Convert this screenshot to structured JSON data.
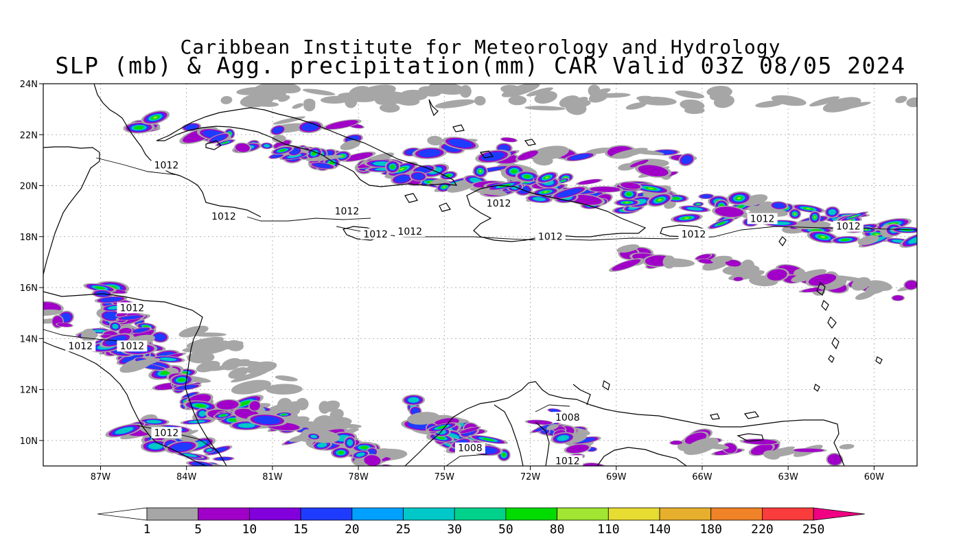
{
  "title": {
    "line1": "Caribbean Institute for Meteorology and Hydrology",
    "line2": "SLP (mb) & Agg. precipitation(mm) CAR Valid 03Z 08/05 2024"
  },
  "map": {
    "lon_min": -89.0,
    "lon_max": -58.5,
    "lat_min": 9.0,
    "lat_max": 24.0,
    "x_ticks": [
      {
        "lon": -87,
        "label": "87W"
      },
      {
        "lon": -84,
        "label": "84W"
      },
      {
        "lon": -81,
        "label": "81W"
      },
      {
        "lon": -78,
        "label": "78W"
      },
      {
        "lon": -75,
        "label": "75W"
      },
      {
        "lon": -72,
        "label": "72W"
      },
      {
        "lon": -69,
        "label": "69W"
      },
      {
        "lon": -66,
        "label": "66W"
      },
      {
        "lon": -63,
        "label": "63W"
      },
      {
        "lon": -60,
        "label": "60W"
      }
    ],
    "y_ticks": [
      {
        "lat": 10,
        "label": "10N"
      },
      {
        "lat": 12,
        "label": "12N"
      },
      {
        "lat": 14,
        "label": "14N"
      },
      {
        "lat": 16,
        "label": "16N"
      },
      {
        "lat": 18,
        "label": "18N"
      },
      {
        "lat": 20,
        "label": "20N"
      },
      {
        "lat": 22,
        "label": "22N"
      },
      {
        "lat": 24,
        "label": "24N"
      }
    ],
    "isobar_labels": [
      {
        "lon": -84.7,
        "lat": 20.7,
        "text": "1012"
      },
      {
        "lon": -82.7,
        "lat": 18.7,
        "text": "1012"
      },
      {
        "lon": -78.4,
        "lat": 18.9,
        "text": "1012"
      },
      {
        "lon": -77.4,
        "lat": 18.0,
        "text": "1012"
      },
      {
        "lon": -76.2,
        "lat": 18.1,
        "text": "1012"
      },
      {
        "lon": -73.1,
        "lat": 19.2,
        "text": "1012"
      },
      {
        "lon": -71.3,
        "lat": 17.9,
        "text": "1012"
      },
      {
        "lon": -66.3,
        "lat": 18.0,
        "text": "1012"
      },
      {
        "lon": -63.9,
        "lat": 18.6,
        "text": "1012"
      },
      {
        "lon": -60.9,
        "lat": 18.3,
        "text": "1012"
      },
      {
        "lon": -85.9,
        "lat": 15.1,
        "text": "1012"
      },
      {
        "lon": -87.7,
        "lat": 13.6,
        "text": "1012"
      },
      {
        "lon": -85.9,
        "lat": 13.6,
        "text": "1012"
      },
      {
        "lon": -84.7,
        "lat": 10.2,
        "text": "1012"
      },
      {
        "lon": -74.1,
        "lat": 9.6,
        "text": "1008"
      },
      {
        "lon": -70.7,
        "lat": 10.8,
        "text": "1008"
      },
      {
        "lon": -70.7,
        "lat": 9.1,
        "text": "1012"
      }
    ]
  },
  "colorbar": {
    "levels": [
      "1",
      "5",
      "10",
      "15",
      "20",
      "25",
      "30",
      "50",
      "80",
      "110",
      "140",
      "180",
      "220",
      "250"
    ],
    "colors": [
      "#a6a6a6",
      "#a000c8",
      "#8200dc",
      "#1e3cff",
      "#00a0ff",
      "#00c8c8",
      "#00d28c",
      "#00dc00",
      "#a0e632",
      "#e6dc32",
      "#e6af2d",
      "#f08228",
      "#fa3c3c",
      "#f00082"
    ]
  },
  "precip_colors": {
    "gray": "#a6a6a6",
    "purple": "#a000c8",
    "blue": "#1e3cff",
    "cyan": "#00c8c8",
    "green": "#00dc00",
    "lime": "#a0e632",
    "yellow": "#e6dc32"
  }
}
